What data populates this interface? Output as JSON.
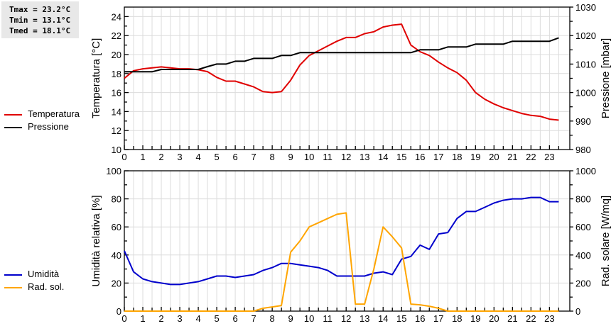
{
  "stats": {
    "tmax": "Tmax = 23.2°C",
    "tmin": "Tmin = 13.1°C",
    "tmed": "Tmed = 18.1°C"
  },
  "legend_top": [
    {
      "label": "Temperatura",
      "color": "#e00000"
    },
    {
      "label": "Pressione",
      "color": "#000000"
    }
  ],
  "legend_bottom": [
    {
      "label": "Umidità",
      "color": "#0000cc"
    },
    {
      "label": "Rad. sol.",
      "color": "#ffa500"
    }
  ],
  "chart_data": [
    {
      "type": "line",
      "title": "",
      "xlabel": "",
      "ylabel": "Temperatura [°C]",
      "y2label": "Pressione [mbar]",
      "x_ticks": [
        0,
        1,
        2,
        3,
        4,
        5,
        6,
        7,
        8,
        9,
        10,
        11,
        12,
        13,
        14,
        15,
        16,
        17,
        18,
        19,
        20,
        21,
        22,
        23
      ],
      "xlim": [
        0,
        24
      ],
      "ylim": [
        10,
        25
      ],
      "y_ticks": [
        10,
        12,
        14,
        16,
        18,
        20,
        22,
        24
      ],
      "y2lim": [
        980,
        1030
      ],
      "y2_ticks": [
        980,
        990,
        1000,
        1010,
        1020,
        1030
      ],
      "grid": true,
      "legend_position": "left",
      "x": [
        0,
        0.5,
        1,
        1.5,
        2,
        2.5,
        3,
        3.5,
        4,
        4.5,
        5,
        5.5,
        6,
        6.5,
        7,
        7.5,
        8,
        8.5,
        9,
        9.5,
        10,
        10.5,
        11,
        11.5,
        12,
        12.5,
        13,
        13.5,
        14,
        14.5,
        15,
        15.5,
        16,
        16.5,
        17,
        17.5,
        18,
        18.5,
        19,
        19.5,
        20,
        20.5,
        21,
        21.5,
        22,
        22.5,
        23,
        23.5
      ],
      "series": [
        {
          "name": "Temperatura",
          "axis": "left",
          "color": "#e00000",
          "values": [
            17.5,
            18.3,
            18.5,
            18.6,
            18.7,
            18.6,
            18.5,
            18.5,
            18.4,
            18.2,
            17.6,
            17.2,
            17.2,
            16.9,
            16.6,
            16.1,
            16.0,
            16.1,
            17.3,
            18.9,
            19.9,
            20.4,
            20.9,
            21.4,
            21.8,
            21.8,
            22.2,
            22.4,
            22.9,
            23.1,
            23.2,
            21.0,
            20.3,
            19.9,
            19.2,
            18.6,
            18.1,
            17.3,
            16.0,
            15.3,
            14.8,
            14.4,
            14.1,
            13.8,
            13.6,
            13.5,
            13.2,
            13.1
          ]
        },
        {
          "name": "Pressione",
          "axis": "right",
          "color": "#000000",
          "values": [
            1007.3,
            1007.3,
            1007.3,
            1007.3,
            1008.1,
            1008.1,
            1008.1,
            1008.1,
            1008.1,
            1009.1,
            1010,
            1010,
            1011,
            1011,
            1012,
            1012,
            1012,
            1013,
            1013,
            1014,
            1014,
            1014,
            1014,
            1014,
            1014,
            1014,
            1014,
            1014,
            1014,
            1014,
            1014,
            1014,
            1015,
            1015,
            1015,
            1016,
            1016,
            1016,
            1017,
            1017,
            1017,
            1017,
            1018,
            1018,
            1018,
            1018,
            1018,
            1019.2
          ]
        }
      ]
    },
    {
      "type": "line",
      "title": "",
      "xlabel": "",
      "ylabel": "Umidità relativa [%]",
      "y2label": "Rad. solare [W/mq]",
      "x_ticks": [
        0,
        1,
        2,
        3,
        4,
        5,
        6,
        7,
        8,
        9,
        10,
        11,
        12,
        13,
        14,
        15,
        16,
        17,
        18,
        19,
        20,
        21,
        22,
        23
      ],
      "xlim": [
        0,
        24
      ],
      "ylim": [
        0,
        100
      ],
      "y_ticks": [
        0,
        20,
        40,
        60,
        80,
        100
      ],
      "y2lim": [
        0,
        1000
      ],
      "y2_ticks": [
        0,
        200,
        400,
        600,
        800,
        1000
      ],
      "grid": true,
      "legend_position": "left",
      "x": [
        0,
        0.5,
        1,
        1.5,
        2,
        2.5,
        3,
        3.5,
        4,
        4.5,
        5,
        5.5,
        6,
        6.5,
        7,
        7.5,
        8,
        8.5,
        9,
        9.5,
        10,
        10.5,
        11,
        11.5,
        12,
        12.5,
        13,
        13.5,
        14,
        14.5,
        15,
        15.5,
        16,
        16.5,
        17,
        17.5,
        18,
        18.5,
        19,
        19.5,
        20,
        20.5,
        21,
        21.5,
        22,
        22.5,
        23,
        23.5
      ],
      "series": [
        {
          "name": "Umidità",
          "axis": "left",
          "color": "#0000cc",
          "values": [
            43,
            28,
            23,
            21,
            20,
            19,
            19,
            20,
            21,
            23,
            25,
            25,
            24,
            25,
            26,
            29,
            31,
            34,
            34,
            33,
            32,
            31,
            29,
            25,
            25,
            25,
            25,
            27,
            28,
            26,
            37,
            39,
            47,
            44,
            55,
            56,
            66,
            71,
            71,
            74,
            77,
            79,
            80,
            80,
            81,
            81,
            78,
            78
          ]
        },
        {
          "name": "Rad. sol.",
          "axis": "right",
          "color": "#ffa500",
          "values": [
            0,
            0,
            0,
            0,
            0,
            0,
            0,
            0,
            0,
            0,
            0,
            0,
            0,
            0,
            0,
            20,
            30,
            40,
            420,
            500,
            600,
            630,
            660,
            690,
            700,
            50,
            50,
            300,
            600,
            530,
            450,
            50,
            45,
            35,
            20,
            0,
            0,
            0,
            0,
            0,
            0,
            0,
            0,
            0,
            0,
            0,
            0,
            0
          ]
        }
      ]
    }
  ]
}
